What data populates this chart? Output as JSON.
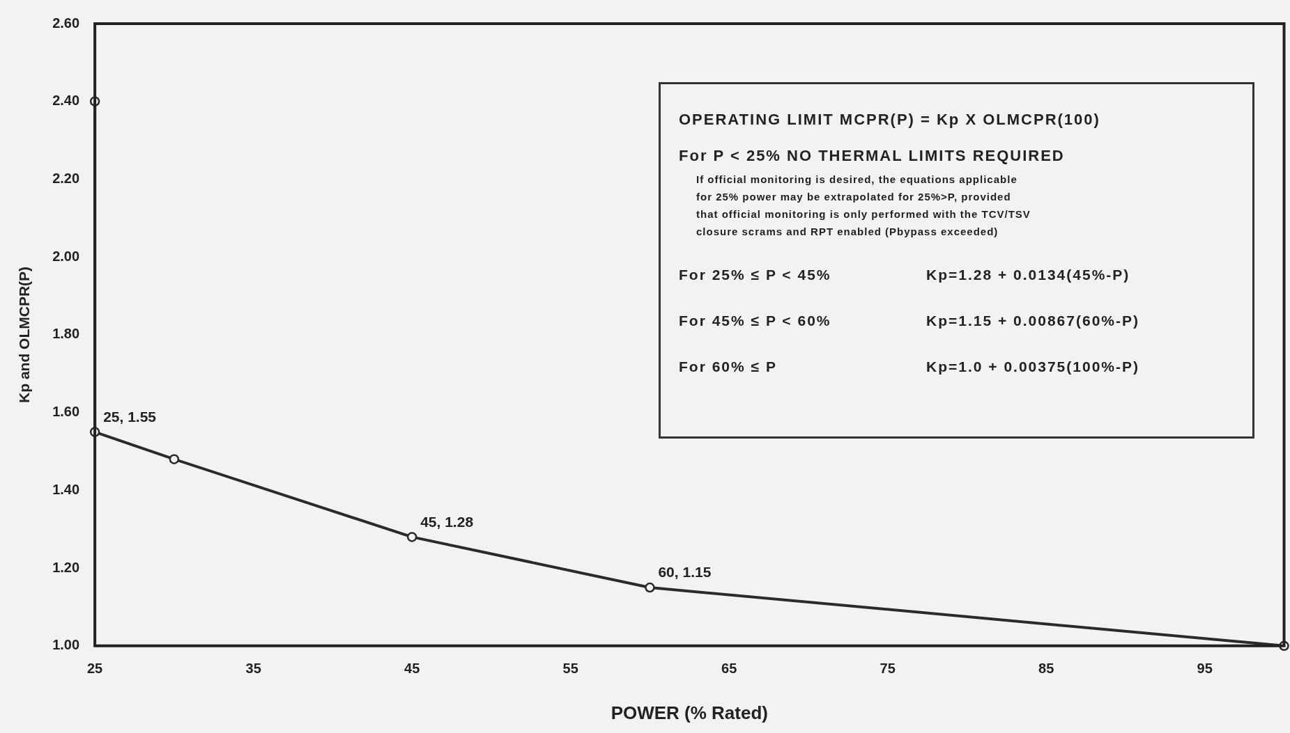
{
  "chart_data": {
    "type": "line",
    "xlabel": "POWER (% Rated)",
    "ylabel": "Kp and OLMCPR(P)",
    "x": [
      25,
      25,
      30,
      45,
      60,
      100
    ],
    "series": [
      {
        "color": "#2a2a2a",
        "values": [
          2.4,
          1.55,
          1.48,
          1.28,
          1.15,
          1.0
        ]
      }
    ],
    "xlim": [
      25,
      100
    ],
    "xticks": [
      25,
      35,
      45,
      55,
      65,
      75,
      85,
      95
    ],
    "ylim": [
      1.0,
      2.6
    ],
    "yticks": [
      {
        "value": 1.0,
        "label": "1.00"
      },
      {
        "value": 1.2,
        "label": "1.20"
      },
      {
        "value": 1.4,
        "label": "1.40"
      },
      {
        "value": 1.6,
        "label": "1.60"
      },
      {
        "value": 1.8,
        "label": "1.80"
      },
      {
        "value": 2.0,
        "label": "2.00"
      },
      {
        "value": 2.2,
        "label": "2.20"
      },
      {
        "value": 2.4,
        "label": "2.40"
      },
      {
        "value": 2.6,
        "label": "2.60"
      }
    ],
    "grid": false,
    "legend": false,
    "marker": "circle",
    "line_style": "solid",
    "annotations": [
      {
        "text": "25, 1.55",
        "x": 25,
        "y": 1.55
      },
      {
        "text": "45, 1.28",
        "x": 45,
        "y": 1.28
      },
      {
        "text": "60, 1.15",
        "x": 60,
        "y": 1.15
      },
      "OPERATING LIMIT MCPR(P) = Kp X OLMCPR(100)",
      "For P < 25%  NO THERMAL LIMITS REQUIRED",
      "If official monitoring is desired, the equations applicable",
      "for 25% power may be extrapolated for 25%>P, provided",
      "that official monitoring is only performed with the TCV/TSV",
      "closure scrams and RPT enabled (Pbypass exceeded)",
      "For 25% ≤ P < 45%",
      "Kp=1.28 + 0.0134(45%-P)",
      "For 45% ≤ P < 60%",
      "Kp=1.15 + 0.00867(60%-P)",
      "For 60% ≤ P",
      "Kp=1.0 + 0.00375(100%-P)"
    ]
  }
}
